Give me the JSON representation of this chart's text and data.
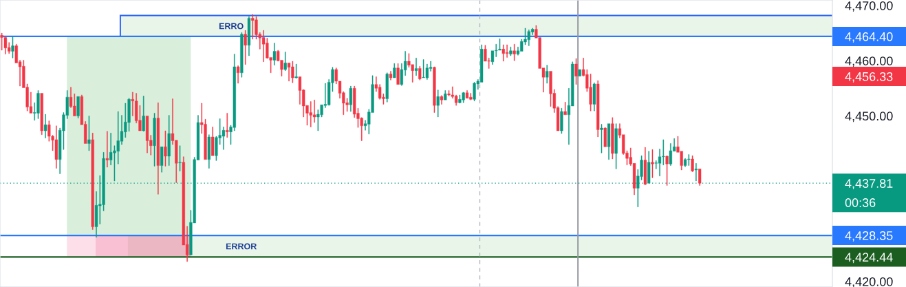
{
  "chart_data": {
    "type": "candlestick",
    "categories": [
      null,
      null,
      null,
      null,
      null,
      null,
      null,
      null,
      null,
      null,
      null,
      null,
      null,
      null,
      null,
      null,
      null,
      null,
      null,
      null,
      null,
      null,
      null,
      null,
      null,
      null,
      null,
      null,
      null,
      null,
      null,
      null,
      null,
      null,
      null,
      null,
      null,
      null,
      null,
      null,
      null,
      null,
      null,
      null,
      null,
      null,
      null,
      null,
      null,
      null,
      null,
      null,
      null,
      null,
      null,
      null,
      null,
      null,
      null,
      null,
      null,
      null,
      null,
      null,
      null,
      null,
      null,
      null,
      null,
      null,
      null,
      null,
      null,
      null,
      null,
      null,
      null,
      null,
      null,
      null,
      null,
      null,
      null,
      null,
      null,
      null,
      null,
      null,
      null,
      null,
      null,
      null,
      null,
      null,
      null,
      null,
      null,
      null,
      null,
      null,
      null,
      null,
      null,
      null,
      null,
      null,
      null,
      null,
      null,
      null,
      null,
      null,
      null,
      null,
      null,
      null,
      null,
      null,
      null,
      null,
      null,
      null,
      null,
      null,
      null,
      null,
      null,
      null,
      null,
      null,
      null,
      null,
      null,
      null,
      null,
      null,
      null,
      null,
      null,
      null,
      null,
      null,
      null,
      null,
      null,
      null,
      null,
      null,
      null,
      null,
      null,
      null,
      null,
      null,
      null,
      null,
      null,
      null,
      null,
      null,
      null,
      null,
      null,
      null,
      null,
      null,
      null,
      null,
      null,
      null,
      null,
      null,
      null,
      null,
      null,
      null,
      null,
      null,
      null,
      null,
      null,
      null,
      null,
      null,
      null,
      null,
      null,
      null,
      null,
      null,
      null,
      null,
      null,
      null,
      null,
      null,
      null,
      null,
      null,
      null,
      null,
      null,
      null,
      null,
      null,
      null,
      null,
      null,
      null,
      null,
      null,
      null,
      null,
      null,
      null,
      null,
      null,
      null,
      null,
      null,
      null,
      null,
      null,
      null,
      null,
      null,
      null,
      null,
      null
    ],
    "ohlc": [
      [
        4464.6,
        4465.0,
        4461.9,
        4464.2
      ],
      [
        4464.2,
        4464.4,
        4461.2,
        4462.3
      ],
      [
        4462.4,
        4463.3,
        4461.3,
        4461.7
      ],
      [
        4461.7,
        4464.4,
        4460.5,
        4462.7
      ],
      [
        4462.7,
        4463.0,
        4459.6,
        4459.6
      ],
      [
        4459.8,
        4460.1,
        4455.4,
        4458.9
      ],
      [
        4459.0,
        4460.1,
        4455.1,
        4455.1
      ],
      [
        4455.2,
        4455.8,
        4450.9,
        4451.6
      ],
      [
        4451.7,
        4454.3,
        4450.5,
        4450.5
      ],
      [
        4450.5,
        4452.4,
        4449.2,
        4450.6
      ],
      [
        4450.5,
        4454.6,
        4449.5,
        4454.1
      ],
      [
        4454.1,
        4454.1,
        4446.6,
        4447.3
      ],
      [
        4447.3,
        4450.3,
        4446.0,
        4448.4
      ],
      [
        4448.4,
        4449.1,
        4445.4,
        4446.3
      ],
      [
        4446.3,
        4446.5,
        4443.7,
        4445.6
      ],
      [
        4445.7,
        4448.2,
        4440.5,
        4442.1
      ],
      [
        4442.1,
        4447.8,
        4439.5,
        4447.4
      ],
      [
        4447.3,
        4450.6,
        4443.9,
        4450.2
      ],
      [
        4450.1,
        4454.6,
        4449.5,
        4453.4
      ],
      [
        4453.4,
        4455.2,
        4451.5,
        4451.7
      ],
      [
        4451.8,
        4454.0,
        4450.0,
        4450.0
      ],
      [
        4450.0,
        4453.5,
        4449.6,
        4453.5
      ],
      [
        4453.5,
        4453.8,
        4448.4,
        4448.4
      ],
      [
        4448.5,
        4449.0,
        4445.0,
        4445.0
      ],
      [
        4445.0,
        4450.0,
        4443.7,
        4445.7
      ],
      [
        4445.7,
        4446.9,
        4429.4,
        4429.9
      ],
      [
        4429.9,
        4436.3,
        4428.0,
        4433.8
      ],
      [
        4433.7,
        4439.2,
        4430.4,
        4434.0
      ],
      [
        4433.9,
        4443.4,
        4432.8,
        4442.3
      ],
      [
        4442.3,
        4447.2,
        4440.7,
        4442.0
      ],
      [
        4442.0,
        4446.9,
        4441.1,
        4443.4
      ],
      [
        4443.3,
        4444.6,
        4438.2,
        4443.7
      ],
      [
        4443.6,
        4450.8,
        4441.3,
        4445.5
      ],
      [
        4445.4,
        4450.1,
        4444.8,
        4447.2
      ],
      [
        4447.1,
        4452.3,
        4446.1,
        4448.9
      ],
      [
        4448.8,
        4453.2,
        4447.2,
        4453.0
      ],
      [
        4453.0,
        4454.3,
        4450.0,
        4452.7
      ],
      [
        4452.7,
        4454.1,
        4448.7,
        4449.1
      ],
      [
        4449.2,
        4451.9,
        4447.3,
        4447.3
      ],
      [
        4447.3,
        4453.6,
        4447.2,
        4450.0
      ],
      [
        4450.0,
        4450.0,
        4443.3,
        4445.5
      ],
      [
        4445.6,
        4446.5,
        4442.9,
        4444.6
      ],
      [
        4444.6,
        4450.5,
        4440.9,
        4449.6
      ],
      [
        4449.6,
        4452.4,
        4435.8,
        4441.0
      ],
      [
        4441.0,
        4444.4,
        4439.8,
        4444.4
      ],
      [
        4444.4,
        4447.3,
        4440.9,
        4442.7
      ],
      [
        4442.7,
        4450.1,
        4441.0,
        4446.8
      ],
      [
        4446.8,
        4453.1,
        4444.8,
        4445.5
      ],
      [
        4445.6,
        4445.6,
        4437.9,
        4441.4
      ],
      [
        4441.5,
        4444.6,
        4440.0,
        4441.6
      ],
      [
        4441.6,
        4442.6,
        4426.6,
        4426.6
      ],
      [
        4426.7,
        4430.0,
        4423.6,
        4424.8
      ],
      [
        4424.8,
        4432.9,
        4424.8,
        4430.7
      ],
      [
        4430.6,
        4442.5,
        4430.6,
        4442.1
      ],
      [
        4442.0,
        4450.1,
        4442.0,
        4448.8
      ],
      [
        4448.8,
        4452.3,
        4446.8,
        4448.4
      ],
      [
        4448.5,
        4449.4,
        4442.1,
        4442.1
      ],
      [
        4442.1,
        4446.6,
        4440.5,
        4446.2
      ],
      [
        4446.2,
        4448.0,
        4442.8,
        4442.8
      ],
      [
        4442.8,
        4446.3,
        4441.9,
        4446.1
      ],
      [
        4446.0,
        4449.5,
        4444.8,
        4446.5
      ],
      [
        4446.3,
        4448.0,
        4443.9,
        4447.4
      ],
      [
        4447.4,
        4450.5,
        4446.1,
        4447.1
      ],
      [
        4447.1,
        4448.3,
        4444.8,
        4448.0
      ],
      [
        4447.9,
        4461.2,
        4447.3,
        4458.9
      ],
      [
        4458.9,
        4459.1,
        4455.9,
        4457.8
      ],
      [
        4457.8,
        4465.1,
        4457.0,
        4464.8
      ],
      [
        4464.8,
        4465.5,
        4459.3,
        4462.8
      ],
      [
        4462.8,
        4468.0,
        4460.9,
        4467.7
      ],
      [
        4467.7,
        4468.4,
        4463.9,
        4467.3
      ],
      [
        4467.4,
        4468.0,
        4463.9,
        4464.7
      ],
      [
        4464.8,
        4465.1,
        4462.1,
        4464.1
      ],
      [
        4464.2,
        4465.5,
        4459.8,
        4463.0
      ],
      [
        4463.2,
        4464.1,
        4460.4,
        4460.5
      ],
      [
        4460.6,
        4460.6,
        4457.8,
        4460.1
      ],
      [
        4460.1,
        4463.2,
        4459.2,
        4461.7
      ],
      [
        4461.7,
        4461.9,
        4459.9,
        4460.0
      ],
      [
        4460.1,
        4460.1,
        4457.2,
        4458.4
      ],
      [
        4458.4,
        4461.6,
        4458.2,
        4459.6
      ],
      [
        4459.6,
        4459.6,
        4456.3,
        4458.8
      ],
      [
        4458.9,
        4459.9,
        4456.0,
        4456.9
      ],
      [
        4456.9,
        4459.4,
        4456.8,
        4457.1
      ],
      [
        4457.1,
        4457.1,
        4452.1,
        4454.6
      ],
      [
        4454.7,
        4454.8,
        4449.8,
        4451.8
      ],
      [
        4451.9,
        4451.9,
        4448.3,
        4450.5
      ],
      [
        4450.6,
        4452.6,
        4448.0,
        4450.1
      ],
      [
        4450.2,
        4452.9,
        4448.8,
        4449.8
      ],
      [
        4449.8,
        4451.1,
        4447.3,
        4450.3
      ],
      [
        4450.2,
        4452.0,
        4449.8,
        4452.0
      ],
      [
        4451.9,
        4455.9,
        4451.5,
        4452.1
      ],
      [
        4452.0,
        4456.6,
        4451.9,
        4456.1
      ],
      [
        4456.0,
        4458.8,
        4454.4,
        4458.4
      ],
      [
        4458.4,
        4458.7,
        4455.8,
        4456.3
      ],
      [
        4456.3,
        4456.3,
        4453.2,
        4454.1
      ],
      [
        4454.2,
        4454.4,
        4450.2,
        4452.3
      ],
      [
        4452.4,
        4453.2,
        4450.8,
        4452.0
      ],
      [
        4452.0,
        4455.4,
        4450.8,
        4455.0
      ],
      [
        4455.0,
        4455.4,
        4449.7,
        4450.3
      ],
      [
        4450.5,
        4451.4,
        4447.9,
        4449.5
      ],
      [
        4449.6,
        4449.7,
        4445.5,
        4448.2
      ],
      [
        4448.2,
        4449.2,
        4447.4,
        4448.6
      ],
      [
        4448.5,
        4451.2,
        4446.7,
        4450.7
      ],
      [
        4450.6,
        4457.3,
        4450.6,
        4455.7
      ],
      [
        4455.7,
        4457.1,
        4454.4,
        4455.0
      ],
      [
        4455.2,
        4455.7,
        4453.0,
        4453.2
      ],
      [
        4453.4,
        4454.0,
        4452.1,
        4453.1
      ],
      [
        4453.1,
        4457.8,
        4452.5,
        4457.6
      ],
      [
        4457.6,
        4458.1,
        4456.5,
        4456.9
      ],
      [
        4456.9,
        4459.5,
        4456.9,
        4458.7
      ],
      [
        4458.7,
        4459.5,
        4455.7,
        4455.7
      ],
      [
        4455.7,
        4459.5,
        4455.5,
        4458.4
      ],
      [
        4458.3,
        4461.7,
        4457.3,
        4459.9
      ],
      [
        4459.9,
        4461.3,
        4458.8,
        4459.2
      ],
      [
        4459.3,
        4459.3,
        4456.1,
        4458.2
      ],
      [
        4458.2,
        4460.5,
        4457.3,
        4458.6
      ],
      [
        4458.6,
        4459.0,
        4456.5,
        4456.7
      ],
      [
        4456.9,
        4460.2,
        4456.9,
        4457.0
      ],
      [
        4456.9,
        4459.4,
        4456.6,
        4458.7
      ],
      [
        4458.6,
        4459.9,
        4458.1,
        4458.8
      ],
      [
        4458.8,
        4458.9,
        4450.6,
        4451.9
      ],
      [
        4451.9,
        4454.7,
        4449.8,
        4453.5
      ],
      [
        4453.5,
        4453.7,
        4452.1,
        4452.9
      ],
      [
        4452.9,
        4454.6,
        4452.9,
        4454.0
      ],
      [
        4454.0,
        4454.6,
        4453.6,
        4453.8
      ],
      [
        4453.8,
        4455.3,
        4453.2,
        4453.5
      ],
      [
        4453.6,
        4453.8,
        4451.9,
        4452.4
      ],
      [
        4452.4,
        4453.8,
        4452.3,
        4453.0
      ],
      [
        4452.9,
        4454.3,
        4452.4,
        4454.2
      ],
      [
        4454.2,
        4454.6,
        4453.2,
        4453.2
      ],
      [
        4453.4,
        4454.1,
        4452.9,
        4453.0
      ],
      [
        4453.0,
        4456.1,
        4452.7,
        4455.9
      ],
      [
        4455.8,
        4456.6,
        4454.8,
        4456.3
      ],
      [
        4456.1,
        4462.9,
        4456.1,
        4462.1
      ],
      [
        4462.1,
        4462.8,
        4459.9,
        4459.9
      ],
      [
        4460.0,
        4460.5,
        4458.6,
        4459.9
      ],
      [
        4459.8,
        4461.8,
        4459.3,
        4461.8
      ],
      [
        4461.8,
        4463.0,
        4460.7,
        4461.9
      ],
      [
        4461.9,
        4464.0,
        4461.9,
        4462.1
      ],
      [
        4462.1,
        4462.9,
        4459.9,
        4461.3
      ],
      [
        4461.5,
        4462.9,
        4460.6,
        4461.3
      ],
      [
        4461.2,
        4462.5,
        4460.9,
        4461.8
      ],
      [
        4461.8,
        4463.0,
        4460.0,
        4461.2
      ],
      [
        4461.2,
        4462.5,
        4461.0,
        4461.8
      ],
      [
        4461.7,
        4463.9,
        4461.7,
        4463.5
      ],
      [
        4463.4,
        4465.9,
        4462.9,
        4463.9
      ],
      [
        4463.8,
        4465.6,
        4462.7,
        4465.3
      ],
      [
        4465.2,
        4465.9,
        4464.7,
        4465.7
      ],
      [
        4465.7,
        4466.4,
        4464.1,
        4464.1
      ],
      [
        4464.2,
        4464.2,
        4458.6,
        4458.6
      ],
      [
        4458.7,
        4458.7,
        4454.3,
        4457.0
      ],
      [
        4457.0,
        4459.2,
        4455.9,
        4458.1
      ],
      [
        4458.1,
        4458.1,
        4451.7,
        4454.0
      ],
      [
        4454.1,
        4454.8,
        4450.6,
        4451.4
      ],
      [
        4451.5,
        4451.7,
        4447.3,
        4447.3
      ],
      [
        4447.3,
        4451.4,
        4446.8,
        4450.8
      ],
      [
        4450.8,
        4452.5,
        4450.2,
        4450.2
      ],
      [
        4450.2,
        4455.0,
        4444.8,
        4451.9
      ],
      [
        4451.8,
        4459.8,
        4451.8,
        4459.4
      ],
      [
        4459.4,
        4460.4,
        4455.7,
        4457.2
      ],
      [
        4457.2,
        4458.4,
        4457.2,
        4458.4
      ],
      [
        4458.4,
        4460.5,
        4457.2,
        4457.3
      ],
      [
        4457.5,
        4458.4,
        4454.4,
        4455.0
      ],
      [
        4455.2,
        4457.6,
        4450.9,
        4452.1
      ],
      [
        4452.1,
        4456.0,
        4450.9,
        4455.8
      ],
      [
        4455.8,
        4456.4,
        4446.2,
        4447.5
      ],
      [
        4447.5,
        4448.5,
        4443.3,
        4447.8
      ],
      [
        4447.8,
        4447.9,
        4444.4,
        4444.4
      ],
      [
        4444.4,
        4448.6,
        4442.1,
        4448.6
      ],
      [
        4448.6,
        4449.7,
        4442.2,
        4443.2
      ],
      [
        4443.2,
        4448.6,
        4440.4,
        4447.7
      ],
      [
        4447.7,
        4448.6,
        4446.0,
        4446.5
      ],
      [
        4446.6,
        4446.6,
        4443.0,
        4443.2
      ],
      [
        4443.3,
        4443.7,
        4441.1,
        4442.3
      ],
      [
        4442.5,
        4444.2,
        4441.0,
        4441.3
      ],
      [
        4441.4,
        4441.4,
        4435.7,
        4436.9
      ],
      [
        4436.9,
        4440.3,
        4433.5,
        4439.1
      ],
      [
        4439.0,
        4442.8,
        4438.4,
        4442.0
      ],
      [
        4442.0,
        4444.3,
        4437.5,
        4437.6
      ],
      [
        4437.8,
        4443.6,
        4437.8,
        4441.6
      ],
      [
        4441.6,
        4443.9,
        4438.8,
        4441.3
      ],
      [
        4441.4,
        4441.9,
        4440.4,
        4441.5
      ],
      [
        4441.4,
        4444.0,
        4439.1,
        4442.6
      ],
      [
        4442.6,
        4445.7,
        4441.1,
        4442.7
      ],
      [
        4442.7,
        4442.8,
        4437.4,
        4441.3
      ],
      [
        4441.3,
        4445.0,
        4441.0,
        4443.7
      ],
      [
        4443.6,
        4445.9,
        4443.6,
        4444.4
      ],
      [
        4444.4,
        4446.3,
        4443.4,
        4443.4
      ],
      [
        4443.6,
        4443.6,
        4440.2,
        4441.0
      ],
      [
        4441.0,
        4442.3,
        4440.8,
        4442.1
      ],
      [
        4442.1,
        4443.0,
        4441.0,
        4442.2
      ],
      [
        4442.2,
        4442.8,
        4439.9,
        4440.0
      ],
      [
        4440.2,
        4441.4,
        4438.2,
        4440.4
      ],
      [
        4440.4,
        4440.4,
        4437.4,
        4437.81
      ],
      null,
      null,
      null,
      null,
      null,
      null,
      null,
      null,
      null,
      null,
      null,
      null,
      null,
      null,
      null,
      null,
      null,
      null,
      null,
      null,
      null,
      null,
      null,
      null,
      null,
      null,
      null,
      null,
      null,
      null,
      null,
      null,
      null,
      null,
      null,
      null
    ],
    "colors": [
      "#f23645",
      "#f23645",
      "#f23645",
      "#089981",
      "#f23645",
      "#f23645",
      "#f23645",
      "#f23645",
      "#f23645",
      "#089981",
      "#089981",
      "#f23645",
      "#089981",
      "#f23645",
      "#f23645",
      "#f23645",
      "#089981",
      "#089981",
      "#089981",
      "#f23645",
      "#f23645",
      "#089981",
      "#f23645",
      "#f23645",
      "#089981",
      "#f23645",
      "#089981",
      "#089981",
      "#089981",
      "#f23645",
      "#089981",
      "#089981",
      "#089981",
      "#089981",
      "#089981",
      "#089981",
      "#f23645",
      "#f23645",
      "#f23645",
      "#089981",
      "#f23645",
      "#f23645",
      "#089981",
      "#f23645",
      "#089981",
      "#f23645",
      "#089981",
      "#f23645",
      "#f23645",
      "#089981",
      "#f23645",
      "#f23645",
      "#089981",
      "#089981",
      "#089981",
      "#f23645",
      "#f23645",
      "#089981",
      "#f23645",
      "#089981",
      "#089981",
      "#089981",
      "#f23645",
      "#089981",
      "#089981",
      "#f23645",
      "#089981",
      "#f23645",
      "#089981",
      "#f23645",
      "#f23645",
      "#f23645",
      "#f23645",
      "#f23645",
      "#f23645",
      "#089981",
      "#f23645",
      "#f23645",
      "#089981",
      "#f23645",
      "#f23645",
      "#089981",
      "#f23645",
      "#f23645",
      "#f23645",
      "#f23645",
      "#f23645",
      "#089981",
      "#089981",
      "#089981",
      "#089981",
      "#089981",
      "#f23645",
      "#f23645",
      "#f23645",
      "#f23645",
      "#089981",
      "#f23645",
      "#f23645",
      "#f23645",
      "#089981",
      "#089981",
      "#089981",
      "#f23645",
      "#f23645",
      "#f23645",
      "#089981",
      "#f23645",
      "#089981",
      "#f23645",
      "#089981",
      "#089981",
      "#f23645",
      "#f23645",
      "#089981",
      "#f23645",
      "#089981",
      "#089981",
      "#089981",
      "#f23645",
      "#089981",
      "#f23645",
      "#089981",
      "#f23645",
      "#f23645",
      "#f23645",
      "#089981",
      "#089981",
      "#f23645",
      "#f23645",
      "#089981",
      "#089981",
      "#089981",
      "#f23645",
      "#f23645",
      "#089981",
      "#089981",
      "#089981",
      "#f23645",
      "#f23645",
      "#089981",
      "#f23645",
      "#089981",
      "#089981",
      "#089981",
      "#089981",
      "#089981",
      "#f23645",
      "#f23645",
      "#f23645",
      "#089981",
      "#f23645",
      "#f23645",
      "#f23645",
      "#089981",
      "#f23645",
      "#089981",
      "#089981",
      "#f23645",
      "#089981",
      "#f23645",
      "#f23645",
      "#f23645",
      "#089981",
      "#f23645",
      "#089981",
      "#f23645",
      "#089981",
      "#f23645",
      "#089981",
      "#f23645",
      "#f23645",
      "#f23645",
      "#f23645",
      "#f23645",
      "#089981",
      "#089981",
      "#f23645",
      "#089981",
      "#f23645",
      "#089981",
      "#089981",
      "#089981",
      "#f23645",
      "#089981",
      "#089981",
      "#f23645",
      "#f23645",
      "#089981",
      "#089981",
      "#f23645",
      "#089981",
      "#f23645",
      null,
      null,
      null,
      null,
      null,
      null,
      null,
      null,
      null,
      null,
      null,
      null,
      null,
      null,
      null,
      null,
      null,
      null,
      null,
      null,
      null,
      null,
      null,
      null,
      null,
      null,
      null,
      null,
      null,
      null,
      null,
      null,
      null,
      null,
      null,
      null
    ],
    "ylim": [
      4419.0,
      4471.0
    ],
    "yticks": [
      {
        "value": 4420,
        "label": "4,420.00"
      },
      {
        "value": 4450,
        "label": "4,450.00"
      },
      {
        "value": 4460,
        "label": "4,460.00"
      },
      {
        "value": 4470,
        "label": "4,470.00"
      }
    ],
    "tick_labels": "y",
    "bands": [
      {
        "axis": "y",
        "from": 4464.4,
        "to": 4468.2,
        "color": "#eaf5ea",
        "label": "ERRO"
      },
      {
        "axis": "y",
        "from": 4424.44,
        "to": 4428.35,
        "color": "#eaf5ea",
        "label": "ERROR"
      }
    ],
    "ref_lines": [
      {
        "axis": "y",
        "value": 4464.4,
        "label": "4,464.40",
        "color": "#2979ff"
      },
      {
        "axis": "y",
        "value": 4428.35,
        "label": "4,428.35",
        "color": "#2979ff"
      },
      {
        "axis": "y",
        "value": 4424.44,
        "label": "4,424.44",
        "color": "#1b5e20"
      },
      {
        "axis": "y",
        "value": 4437.81,
        "label": "4,437.81\n00:36",
        "color": "#089981",
        "line_style": "dotted"
      }
    ],
    "annotations": [
      "4,456.33"
    ]
  }
}
